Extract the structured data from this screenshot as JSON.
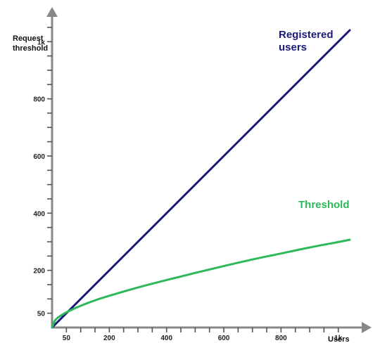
{
  "chart_data": {
    "type": "line",
    "title": "",
    "xlabel": "Users",
    "ylabel_lines": [
      "Request",
      "threshold"
    ],
    "xlim": [
      0,
      1050
    ],
    "ylim": [
      0,
      1050
    ],
    "x_ticks": [
      {
        "value": 50,
        "label": "50"
      },
      {
        "value": 200,
        "label": "200"
      },
      {
        "value": 400,
        "label": "400"
      },
      {
        "value": 600,
        "label": "600"
      },
      {
        "value": 800,
        "label": "800"
      },
      {
        "value": 1000,
        "label": "1k"
      }
    ],
    "y_ticks": [
      {
        "value": 50,
        "label": "50"
      },
      {
        "value": 200,
        "label": "200"
      },
      {
        "value": 400,
        "label": "400"
      },
      {
        "value": 600,
        "label": "600"
      },
      {
        "value": 800,
        "label": "800"
      },
      {
        "value": 1000,
        "label": "1k"
      }
    ],
    "minor_tick_step": 50,
    "grid": false,
    "series": [
      {
        "name": "Registered users",
        "label_lines": [
          "Registered",
          "users"
        ],
        "color": "#1a1a7a",
        "x": [
          0,
          50,
          100,
          200,
          300,
          400,
          500,
          600,
          700,
          800,
          900,
          1000,
          1040
        ],
        "y": [
          0,
          50,
          100,
          200,
          300,
          400,
          500,
          600,
          700,
          800,
          900,
          1000,
          1040
        ]
      },
      {
        "name": "Threshold",
        "label_lines": [
          "Threshold"
        ],
        "color": "#2db85a",
        "x": [
          0,
          10,
          25,
          50,
          75,
          100,
          150,
          200,
          300,
          400,
          500,
          600,
          700,
          800,
          900,
          1000,
          1040
        ],
        "y": [
          0,
          24,
          38,
          53,
          65,
          76,
          95,
          111,
          140,
          166,
          191,
          215,
          238,
          259,
          280,
          299,
          307
        ]
      }
    ]
  }
}
